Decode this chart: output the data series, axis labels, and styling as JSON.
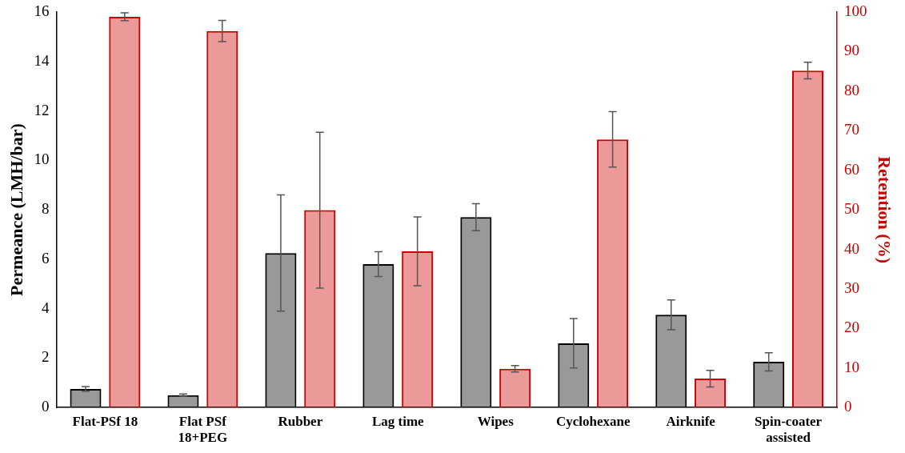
{
  "chart_data": {
    "type": "bar",
    "ylabel": "Permeance (LMH/bar)",
    "y2label": "Retention (%)",
    "categories": [
      "Flat-PSf 18",
      "Flat PSf 18+PEG",
      "Rubber",
      "Lag time",
      "Wipes",
      "Cyclohexane",
      "Airknife",
      "Spin-coater assisted"
    ],
    "series": [
      {
        "color": "#000000",
        "values": [
          0.75,
          0.5,
          6.25,
          5.8,
          7.7,
          2.6,
          3.75,
          1.85
        ],
        "errors": [
          0.1,
          0.05,
          2.35,
          0.5,
          0.55,
          1.0,
          0.6,
          0.37
        ]
      },
      {
        "color": "#cc0000",
        "axis": "y2",
        "values": [
          98.8,
          95.2,
          49.9,
          39.5,
          9.8,
          67.8,
          7.3,
          85.2
        ],
        "errors": [
          1.0,
          2.7,
          19.7,
          8.7,
          0.8,
          7.0,
          2.1,
          2.1
        ]
      }
    ],
    "ylim": [
      0,
      16
    ],
    "yticks": [
      0,
      2,
      4,
      6,
      8,
      10,
      12,
      14,
      16
    ],
    "y2lim": [
      0,
      100
    ],
    "y2ticks": [
      0,
      10,
      20,
      30,
      40,
      50,
      60,
      70,
      80,
      90,
      100
    ],
    "grid": false,
    "legend": false
  }
}
